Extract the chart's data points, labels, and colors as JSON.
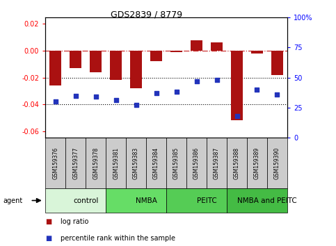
{
  "title": "GDS2839 / 8779",
  "samples": [
    "GSM159376",
    "GSM159377",
    "GSM159378",
    "GSM159381",
    "GSM159383",
    "GSM159384",
    "GSM159385",
    "GSM159386",
    "GSM159387",
    "GSM159388",
    "GSM159389",
    "GSM159390"
  ],
  "log_ratio": [
    -0.026,
    -0.013,
    -0.016,
    -0.022,
    -0.028,
    -0.008,
    -0.001,
    0.008,
    0.006,
    -0.052,
    -0.002,
    -0.018
  ],
  "percentile_rank": [
    30,
    35,
    34,
    31,
    27,
    37,
    38,
    47,
    48,
    18,
    40,
    36
  ],
  "groups": [
    {
      "label": "control",
      "start": 0,
      "end": 3,
      "color": "#d9f5d9"
    },
    {
      "label": "NMBA",
      "start": 3,
      "end": 6,
      "color": "#66dd66"
    },
    {
      "label": "PEITC",
      "start": 6,
      "end": 9,
      "color": "#55cc55"
    },
    {
      "label": "NMBA and PEITC",
      "start": 9,
      "end": 12,
      "color": "#44bb44"
    }
  ],
  "bar_color": "#aa1111",
  "dot_color": "#2233bb",
  "ylim_left": [
    -0.065,
    0.025
  ],
  "ylim_right": [
    0,
    100
  ],
  "yticks_left": [
    -0.06,
    -0.04,
    -0.02,
    0.0,
    0.02
  ],
  "yticks_right": [
    0,
    25,
    50,
    75,
    100
  ],
  "hline_zero_color": "#cc3333",
  "hlines_dotted": [
    -0.02,
    -0.04
  ],
  "legend_labels": [
    "log ratio",
    "percentile rank within the sample"
  ],
  "agent_label": "agent",
  "sample_box_color": "#cccccc",
  "group_label_fontsize": 7.5,
  "title_fontsize": 9
}
